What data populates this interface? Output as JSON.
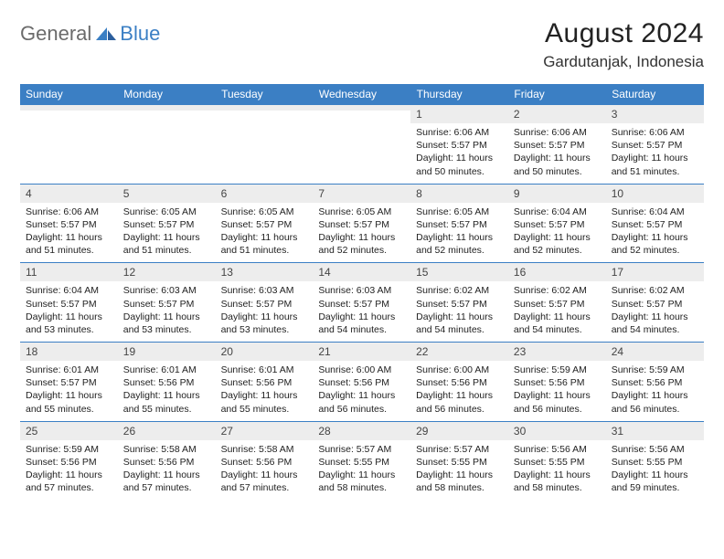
{
  "brand": {
    "part1": "General",
    "part2": "Blue"
  },
  "title": "August 2024",
  "location": "Gardutanjak, Indonesia",
  "colors": {
    "header_bg": "#3b7fc4",
    "header_text": "#ffffff",
    "daynum_bg": "#ededed",
    "cell_border": "#3b7fc4",
    "logo_gray": "#6b6b6b",
    "logo_blue": "#3b7fc4"
  },
  "day_headers": [
    "Sunday",
    "Monday",
    "Tuesday",
    "Wednesday",
    "Thursday",
    "Friday",
    "Saturday"
  ],
  "weeks": [
    [
      {
        "n": "",
        "sr": "",
        "ss": "",
        "dl": ""
      },
      {
        "n": "",
        "sr": "",
        "ss": "",
        "dl": ""
      },
      {
        "n": "",
        "sr": "",
        "ss": "",
        "dl": ""
      },
      {
        "n": "",
        "sr": "",
        "ss": "",
        "dl": ""
      },
      {
        "n": "1",
        "sr": "Sunrise: 6:06 AM",
        "ss": "Sunset: 5:57 PM",
        "dl": "Daylight: 11 hours and 50 minutes."
      },
      {
        "n": "2",
        "sr": "Sunrise: 6:06 AM",
        "ss": "Sunset: 5:57 PM",
        "dl": "Daylight: 11 hours and 50 minutes."
      },
      {
        "n": "3",
        "sr": "Sunrise: 6:06 AM",
        "ss": "Sunset: 5:57 PM",
        "dl": "Daylight: 11 hours and 51 minutes."
      }
    ],
    [
      {
        "n": "4",
        "sr": "Sunrise: 6:06 AM",
        "ss": "Sunset: 5:57 PM",
        "dl": "Daylight: 11 hours and 51 minutes."
      },
      {
        "n": "5",
        "sr": "Sunrise: 6:05 AM",
        "ss": "Sunset: 5:57 PM",
        "dl": "Daylight: 11 hours and 51 minutes."
      },
      {
        "n": "6",
        "sr": "Sunrise: 6:05 AM",
        "ss": "Sunset: 5:57 PM",
        "dl": "Daylight: 11 hours and 51 minutes."
      },
      {
        "n": "7",
        "sr": "Sunrise: 6:05 AM",
        "ss": "Sunset: 5:57 PM",
        "dl": "Daylight: 11 hours and 52 minutes."
      },
      {
        "n": "8",
        "sr": "Sunrise: 6:05 AM",
        "ss": "Sunset: 5:57 PM",
        "dl": "Daylight: 11 hours and 52 minutes."
      },
      {
        "n": "9",
        "sr": "Sunrise: 6:04 AM",
        "ss": "Sunset: 5:57 PM",
        "dl": "Daylight: 11 hours and 52 minutes."
      },
      {
        "n": "10",
        "sr": "Sunrise: 6:04 AM",
        "ss": "Sunset: 5:57 PM",
        "dl": "Daylight: 11 hours and 52 minutes."
      }
    ],
    [
      {
        "n": "11",
        "sr": "Sunrise: 6:04 AM",
        "ss": "Sunset: 5:57 PM",
        "dl": "Daylight: 11 hours and 53 minutes."
      },
      {
        "n": "12",
        "sr": "Sunrise: 6:03 AM",
        "ss": "Sunset: 5:57 PM",
        "dl": "Daylight: 11 hours and 53 minutes."
      },
      {
        "n": "13",
        "sr": "Sunrise: 6:03 AM",
        "ss": "Sunset: 5:57 PM",
        "dl": "Daylight: 11 hours and 53 minutes."
      },
      {
        "n": "14",
        "sr": "Sunrise: 6:03 AM",
        "ss": "Sunset: 5:57 PM",
        "dl": "Daylight: 11 hours and 54 minutes."
      },
      {
        "n": "15",
        "sr": "Sunrise: 6:02 AM",
        "ss": "Sunset: 5:57 PM",
        "dl": "Daylight: 11 hours and 54 minutes."
      },
      {
        "n": "16",
        "sr": "Sunrise: 6:02 AM",
        "ss": "Sunset: 5:57 PM",
        "dl": "Daylight: 11 hours and 54 minutes."
      },
      {
        "n": "17",
        "sr": "Sunrise: 6:02 AM",
        "ss": "Sunset: 5:57 PM",
        "dl": "Daylight: 11 hours and 54 minutes."
      }
    ],
    [
      {
        "n": "18",
        "sr": "Sunrise: 6:01 AM",
        "ss": "Sunset: 5:57 PM",
        "dl": "Daylight: 11 hours and 55 minutes."
      },
      {
        "n": "19",
        "sr": "Sunrise: 6:01 AM",
        "ss": "Sunset: 5:56 PM",
        "dl": "Daylight: 11 hours and 55 minutes."
      },
      {
        "n": "20",
        "sr": "Sunrise: 6:01 AM",
        "ss": "Sunset: 5:56 PM",
        "dl": "Daylight: 11 hours and 55 minutes."
      },
      {
        "n": "21",
        "sr": "Sunrise: 6:00 AM",
        "ss": "Sunset: 5:56 PM",
        "dl": "Daylight: 11 hours and 56 minutes."
      },
      {
        "n": "22",
        "sr": "Sunrise: 6:00 AM",
        "ss": "Sunset: 5:56 PM",
        "dl": "Daylight: 11 hours and 56 minutes."
      },
      {
        "n": "23",
        "sr": "Sunrise: 5:59 AM",
        "ss": "Sunset: 5:56 PM",
        "dl": "Daylight: 11 hours and 56 minutes."
      },
      {
        "n": "24",
        "sr": "Sunrise: 5:59 AM",
        "ss": "Sunset: 5:56 PM",
        "dl": "Daylight: 11 hours and 56 minutes."
      }
    ],
    [
      {
        "n": "25",
        "sr": "Sunrise: 5:59 AM",
        "ss": "Sunset: 5:56 PM",
        "dl": "Daylight: 11 hours and 57 minutes."
      },
      {
        "n": "26",
        "sr": "Sunrise: 5:58 AM",
        "ss": "Sunset: 5:56 PM",
        "dl": "Daylight: 11 hours and 57 minutes."
      },
      {
        "n": "27",
        "sr": "Sunrise: 5:58 AM",
        "ss": "Sunset: 5:56 PM",
        "dl": "Daylight: 11 hours and 57 minutes."
      },
      {
        "n": "28",
        "sr": "Sunrise: 5:57 AM",
        "ss": "Sunset: 5:55 PM",
        "dl": "Daylight: 11 hours and 58 minutes."
      },
      {
        "n": "29",
        "sr": "Sunrise: 5:57 AM",
        "ss": "Sunset: 5:55 PM",
        "dl": "Daylight: 11 hours and 58 minutes."
      },
      {
        "n": "30",
        "sr": "Sunrise: 5:56 AM",
        "ss": "Sunset: 5:55 PM",
        "dl": "Daylight: 11 hours and 58 minutes."
      },
      {
        "n": "31",
        "sr": "Sunrise: 5:56 AM",
        "ss": "Sunset: 5:55 PM",
        "dl": "Daylight: 11 hours and 59 minutes."
      }
    ]
  ]
}
